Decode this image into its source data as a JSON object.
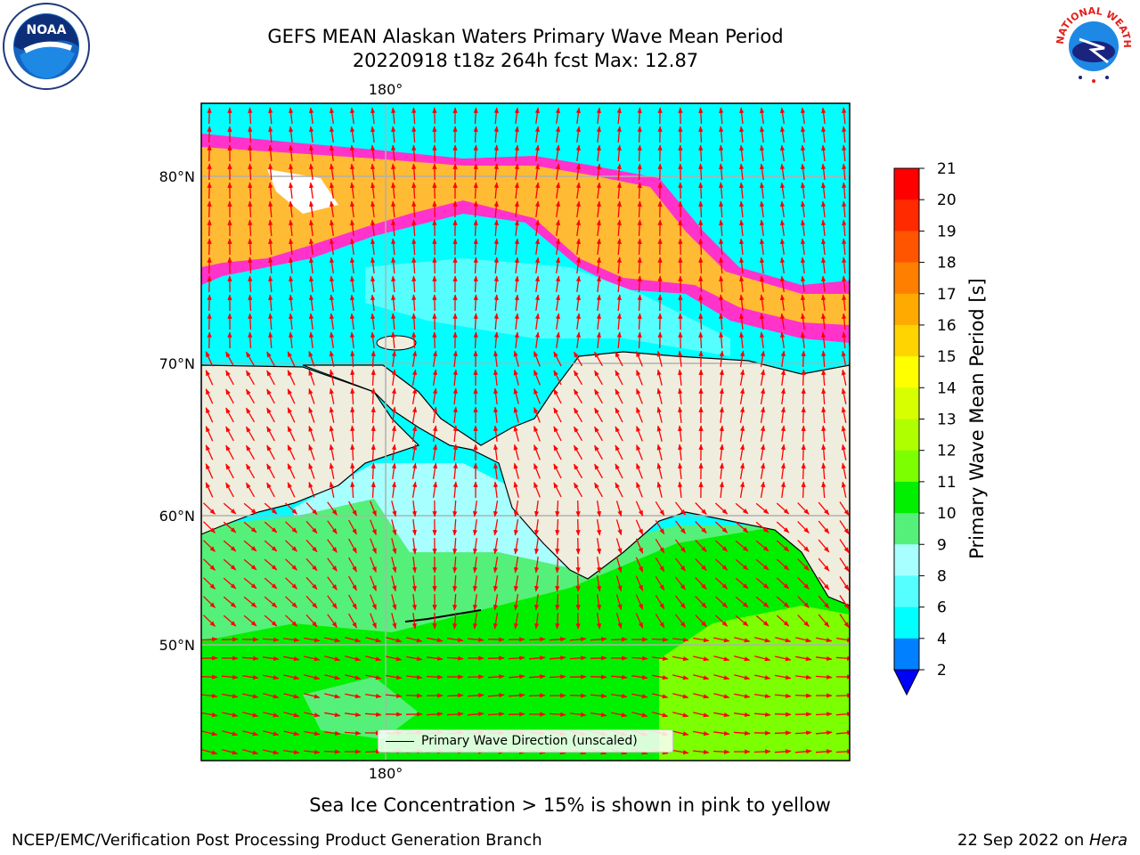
{
  "header": {
    "title_line1": "GEFS MEAN Alaskan Waters Primary Wave Mean Period",
    "title_line2": "20220918 t18z 264h fcst   Max: 12.87"
  },
  "logos": {
    "left": {
      "text": "NOAA",
      "icon": "noaa-logo-icon"
    },
    "right": {
      "text": "NATIONAL WEATHER SERVICE",
      "icon": "nws-logo-icon"
    }
  },
  "map": {
    "top_lon_label": "180°",
    "bottom_lon_label": "180°",
    "lat_labels": [
      "80°N",
      "70°N",
      "60°N",
      "50°N"
    ],
    "legend_text": "Primary Wave Direction (unscaled)",
    "colors": {
      "land": "#efedde",
      "arrow": "#ff0000",
      "grid": "#b0b0b0"
    }
  },
  "colorbar": {
    "label": "Primary Wave Mean Period [s]",
    "ticks": [
      "21",
      "20",
      "19",
      "18",
      "17",
      "16",
      "15",
      "14",
      "13",
      "12",
      "11",
      "10",
      "9",
      "8",
      "6",
      "4",
      "2"
    ],
    "colors": [
      "#ff0000",
      "#ff2a00",
      "#ff5500",
      "#ff8000",
      "#ffaa00",
      "#ffd400",
      "#ffff00",
      "#d8ff00",
      "#b0ff00",
      "#7cff00",
      "#00f000",
      "#55f07a",
      "#a8ffff",
      "#55ffff",
      "#00ffff",
      "#0080ff"
    ],
    "extend_color": "#0000ff"
  },
  "footer": {
    "ice_note": "Sea Ice Concentration > 15% is shown in pink to yellow",
    "credit": "NCEP/EMC/Verification Post Processing Product Generation Branch",
    "date_prefix": "22 Sep 2022 on ",
    "date_machine": "Hera"
  }
}
